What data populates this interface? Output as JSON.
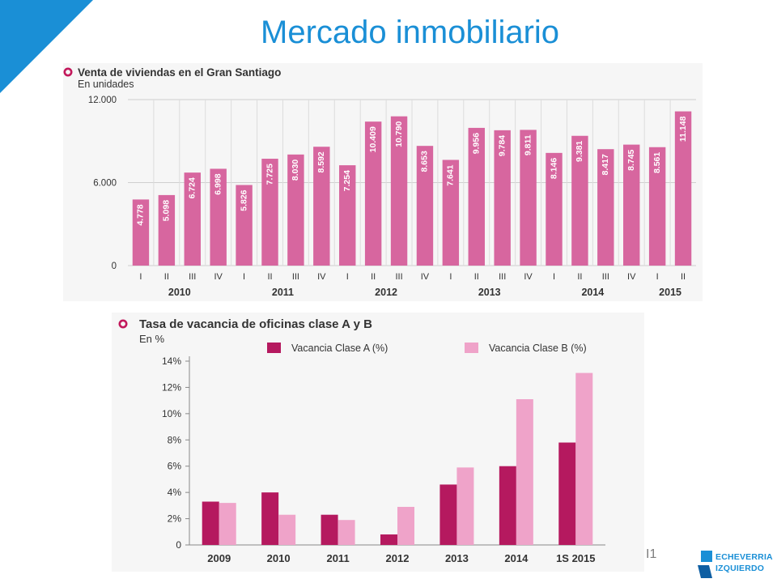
{
  "slide": {
    "title": "Mercado inmobiliario",
    "page_number": "I1",
    "logo_line1": "ECHEVERRIA",
    "logo_line2": "IZQUIERDO",
    "accent_color": "#1a8fd6"
  },
  "chart_data": [
    {
      "type": "bar",
      "title": "Venta de viviendas en el Gran Santiago",
      "subtitle": "En unidades",
      "ylim": [
        0,
        12000
      ],
      "yticks": [
        "0",
        "6.000",
        "12.000"
      ],
      "ytick_values": [
        0,
        6000,
        12000
      ],
      "categories": [
        "I",
        "II",
        "III",
        "IV",
        "I",
        "II",
        "III",
        "IV",
        "I",
        "II",
        "III",
        "IV",
        "I",
        "II",
        "III",
        "IV",
        "I",
        "II",
        "III",
        "IV",
        "I",
        "II"
      ],
      "years": [
        {
          "label": "2010",
          "start": 0,
          "count": 4
        },
        {
          "label": "2011",
          "start": 4,
          "count": 4
        },
        {
          "label": "2012",
          "start": 8,
          "count": 4
        },
        {
          "label": "2013",
          "start": 12,
          "count": 4
        },
        {
          "label": "2014",
          "start": 16,
          "count": 4
        },
        {
          "label": "2015",
          "start": 20,
          "count": 2
        }
      ],
      "values": [
        4778,
        5098,
        6724,
        6998,
        5826,
        7725,
        8030,
        8592,
        7254,
        10409,
        10790,
        8653,
        7641,
        9956,
        9784,
        9811,
        8146,
        9381,
        8417,
        8745,
        8561,
        11148
      ],
      "value_labels": [
        "4.778",
        "5.098",
        "6.724",
        "6.998",
        "5.826",
        "7.725",
        "8.030",
        "8.592",
        "7.254",
        "10.409",
        "10.790",
        "8.653",
        "7.641",
        "9.956",
        "9.784",
        "9.811",
        "8.146",
        "9.381",
        "8.417",
        "8.745",
        "8.561",
        "11.148"
      ],
      "grid": true,
      "color": "#d7669f"
    },
    {
      "type": "bar",
      "title": "Tasa de vacancia de oficinas clase A y B",
      "subtitle": "En %",
      "ylim": [
        0,
        14
      ],
      "yticks": [
        "0",
        "2%",
        "4%",
        "6%",
        "8%",
        "10%",
        "12%",
        "14%"
      ],
      "ytick_values": [
        0,
        2,
        4,
        6,
        8,
        10,
        12,
        14
      ],
      "categories": [
        "2009",
        "2010",
        "2011",
        "2012",
        "2013",
        "2014",
        "1S 2015"
      ],
      "series": [
        {
          "name": "Vacancia Clase A (%)",
          "values": [
            3.3,
            4.0,
            2.3,
            0.8,
            4.6,
            6.0,
            7.8
          ],
          "color": "#b5195f"
        },
        {
          "name": "Vacancia Clase B (%)",
          "values": [
            3.2,
            2.3,
            1.9,
            2.9,
            5.9,
            11.1,
            13.1
          ],
          "color": "#efa3c9"
        }
      ],
      "legend": "top",
      "grid": false
    }
  ]
}
